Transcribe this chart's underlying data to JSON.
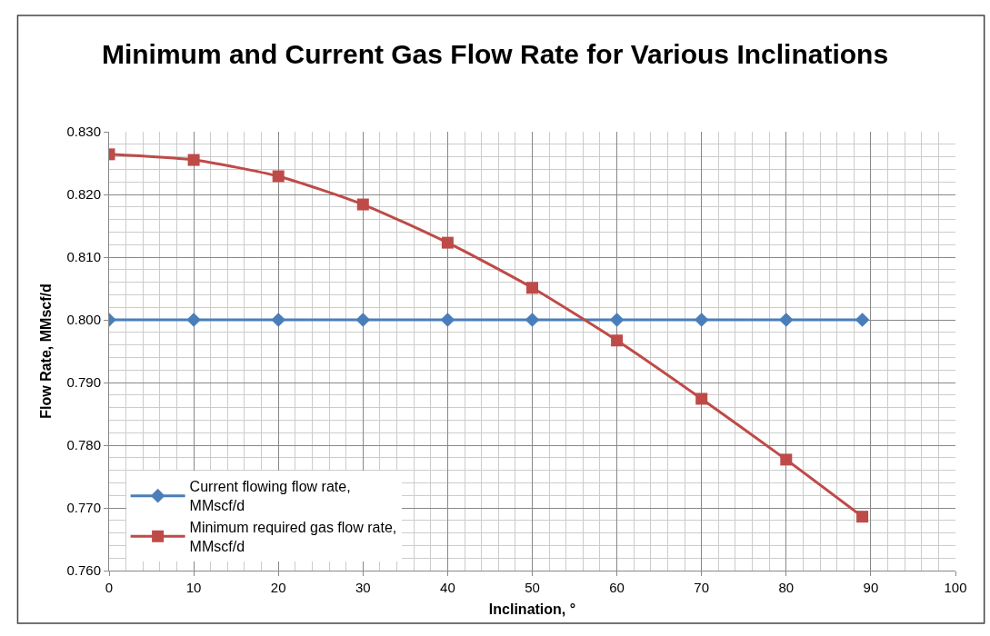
{
  "chart_data": {
    "type": "line",
    "title": "Minimum and Current Gas Flow Rate for Various Inclinations",
    "xlabel": "Inclination, °",
    "ylabel": "Flow Rate, MMscf/d",
    "x": [
      0,
      10,
      20,
      30,
      40,
      50,
      60,
      70,
      80,
      89
    ],
    "series": [
      {
        "name": "Current flowing flow rate, MMscf/d",
        "color": "#4a7ebb",
        "marker": "diamond",
        "values": [
          0.8,
          0.8,
          0.8,
          0.8,
          0.8,
          0.8,
          0.8,
          0.8,
          0.8,
          0.8
        ]
      },
      {
        "name": "Minimum required gas flow rate, MMscf/d",
        "color": "#be4b48",
        "marker": "square",
        "values": [
          0.8264,
          0.8255,
          0.8229,
          0.8184,
          0.8123,
          0.8051,
          0.7967,
          0.7874,
          0.7777,
          0.7686
        ]
      }
    ],
    "xlim": [
      0,
      100
    ],
    "xticks": [
      0,
      10,
      20,
      30,
      40,
      50,
      60,
      70,
      80,
      90,
      100
    ],
    "ylim": [
      0.76,
      0.83
    ],
    "yticks": [
      {
        "value": 0.76,
        "label": "0.760"
      },
      {
        "value": 0.77,
        "label": "0.770"
      },
      {
        "value": 0.78,
        "label": "0.780"
      },
      {
        "value": 0.79,
        "label": "0.790"
      },
      {
        "value": 0.8,
        "label": "0.800"
      },
      {
        "value": 0.81,
        "label": "0.810"
      },
      {
        "value": 0.82,
        "label": "0.820"
      },
      {
        "value": 0.83,
        "label": "0.830"
      }
    ],
    "grid": true,
    "legend": "bottom left",
    "line_style": "solid"
  }
}
